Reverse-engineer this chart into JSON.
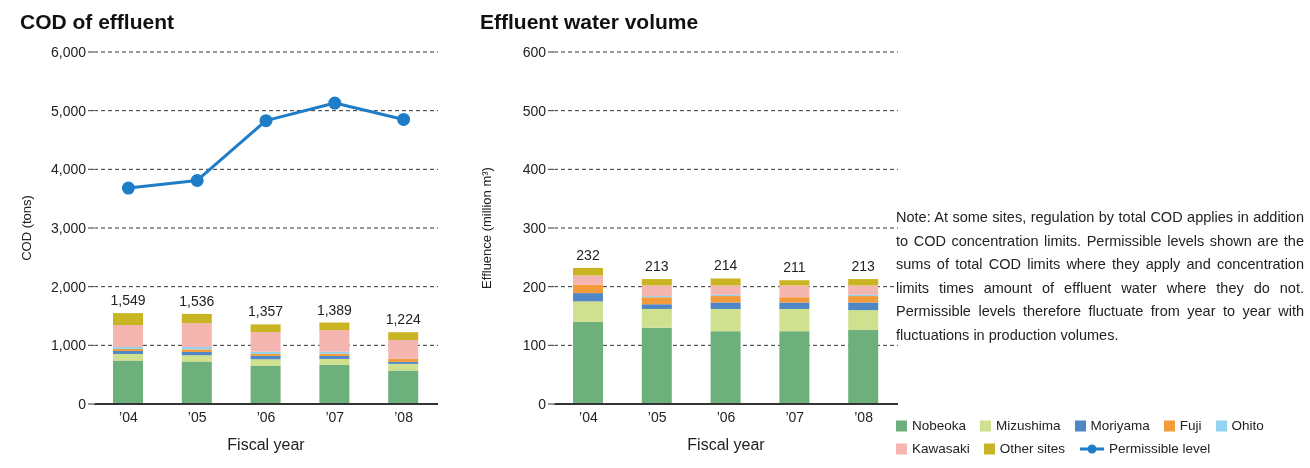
{
  "chart_data": [
    {
      "type": "bar",
      "title": "COD of effluent",
      "ylabel": "COD (tons)",
      "xlabel": "Fiscal year",
      "categories": [
        "’04",
        "’05",
        "’06",
        "’07",
        "’08"
      ],
      "stacked": true,
      "grid": "y",
      "legend": "right",
      "marker": "circle",
      "ylim": [
        0,
        6000
      ],
      "yticks": [
        0,
        {
          "value": 1000,
          "label": "1,000"
        },
        {
          "value": 2000,
          "label": "2,000"
        },
        {
          "value": 3000,
          "label": "3,000"
        },
        {
          "value": 4000,
          "label": "4,000"
        },
        {
          "value": 5000,
          "label": "5,000"
        },
        {
          "value": 6000,
          "label": "6,000"
        }
      ],
      "totals": [
        "1,549",
        "1,536",
        "1,357",
        "1,389",
        "1,224"
      ],
      "series": [
        {
          "name": "Nobeoka",
          "color": "#6db07b",
          "values": [
            740,
            723,
            650,
            667,
            571
          ]
        },
        {
          "name": "Mizushima",
          "color": "#cfe08e",
          "values": [
            113,
            108,
            113,
            101,
            113
          ]
        },
        {
          "name": "Moriyama",
          "color": "#4f86c6",
          "values": [
            51,
            56,
            56,
            51,
            34
          ]
        },
        {
          "name": "Fuji",
          "color": "#f39a3a",
          "values": [
            34,
            45,
            34,
            40,
            50
          ]
        },
        {
          "name": "Ohito",
          "color": "#93d3f0",
          "values": [
            34,
            40,
            40,
            34,
            0
          ]
        },
        {
          "name": "Kawasaki",
          "color": "#f5b5b0",
          "values": [
            373,
            407,
            333,
            367,
            322
          ]
        },
        {
          "name": "Other sites",
          "color": "#c9b523",
          "values": [
            204,
            157,
            131,
            129,
            134
          ]
        },
        {
          "name": "Permissible level",
          "type": "line",
          "color": "#1e7dc6",
          "values": [
            3680,
            3810,
            4830,
            5130,
            4850
          ]
        }
      ]
    },
    {
      "type": "bar",
      "title": "Effluent water volume",
      "ylabel": "Effluence (million m³)",
      "xlabel": "Fiscal year",
      "categories": [
        "’04",
        "’05",
        "’06",
        "’07",
        "’08"
      ],
      "stacked": true,
      "grid": "y",
      "legend": "right",
      "ylim": [
        0,
        600
      ],
      "yticks": [
        0,
        100,
        200,
        300,
        400,
        500,
        600
      ],
      "totals": [
        "232",
        "213",
        "214",
        "211",
        "213"
      ],
      "annotations": [
        "Note: At some sites, regulation by total COD applies in addition to COD concentration limits. Permissible levels shown are the sums of total COD limits where they apply and concentration limits times amount of effluent water where they do not.  Permissible levels therefore fluctuate from year to year with fluctuations in production volumes."
      ],
      "series": [
        {
          "name": "Nobeoka",
          "color": "#6db07b",
          "values": [
            140,
            130,
            124,
            124,
            126
          ]
        },
        {
          "name": "Mizushima",
          "color": "#cfe08e",
          "values": [
            35,
            32,
            38,
            38,
            34
          ]
        },
        {
          "name": "Moriyama",
          "color": "#4f86c6",
          "values": [
            14,
            8,
            11,
            11,
            13
          ]
        },
        {
          "name": "Fuji",
          "color": "#f39a3a",
          "values": [
            14,
            12,
            11,
            9,
            11
          ]
        },
        {
          "name": "Ohito",
          "color": "#93d3f0",
          "values": [
            0,
            2,
            2,
            0,
            2
          ]
        },
        {
          "name": "Kawasaki",
          "color": "#f5b5b0",
          "values": [
            16,
            18,
            16,
            20,
            16
          ]
        },
        {
          "name": "Other sites",
          "color": "#c9b523",
          "values": [
            13,
            11,
            12,
            9,
            11
          ]
        }
      ]
    }
  ]
}
